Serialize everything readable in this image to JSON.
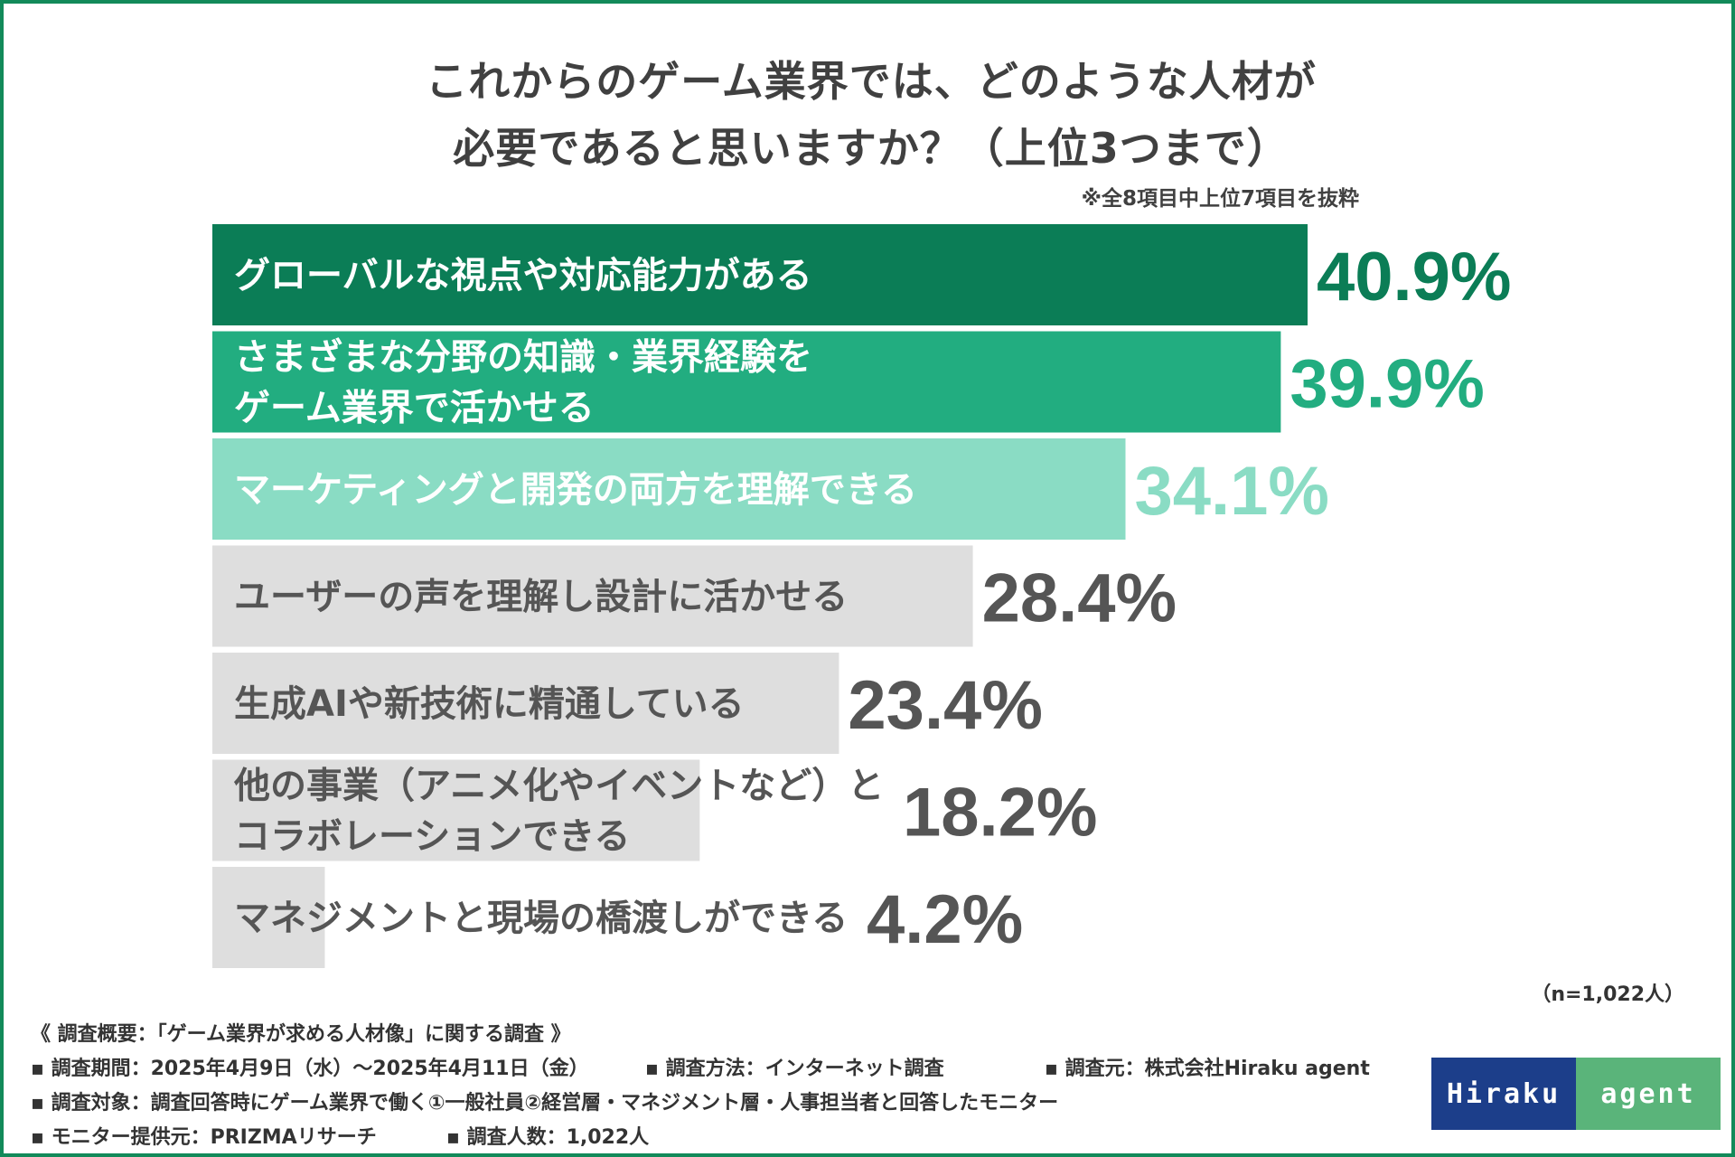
{
  "chart_data": {
    "type": "bar",
    "orientation": "horizontal",
    "title": "これからのゲーム業界では、どのような人材が必要であると思いますか？（上位3つまで）",
    "title_lines": [
      "これからのゲーム業界では、どのような人材が",
      "必要であると思いますか？（上位3つまで）"
    ],
    "note": "※全8項目中上位7項目を抜粋",
    "categories": [
      [
        "グローバルな視点や対応能力がある"
      ],
      [
        "さまざまな分野の知識・業界経験を",
        "ゲーム業界で活かせる"
      ],
      [
        "マーケティングと開発の両方を理解できる"
      ],
      [
        "ユーザーの声を理解し設計に活かせる"
      ],
      [
        "生成AIや新技術に精通している"
      ],
      [
        "他の事業（アニメ化やイベントなど）と",
        "コラボレーションできる"
      ],
      [
        "マネジメントと現場の橋渡しができる"
      ]
    ],
    "values": [
      40.9,
      39.9,
      34.1,
      28.4,
      23.4,
      18.2,
      4.2
    ],
    "value_labels": [
      "40.9%",
      "39.9%",
      "34.1%",
      "28.4%",
      "23.4%",
      "18.2%",
      "4.2%"
    ],
    "xlim": [
      0,
      40.9
    ],
    "unit": "%",
    "colors": {
      "bar": [
        "#0b7d56",
        "#22ad80",
        "#8adcc4",
        "#dedede",
        "#dedede",
        "#dedede",
        "#dedede"
      ],
      "label_text": [
        "#ffffff",
        "#ffffff",
        "#ffffff",
        "#555555",
        "#555555",
        "#555555",
        "#555555"
      ],
      "value_text": [
        "#0b7d56",
        "#22ad80",
        "#8adcc4",
        "#555555",
        "#555555",
        "#555555",
        "#555555"
      ]
    }
  },
  "sample_size": "（n=1,022人）",
  "survey": {
    "header": "《 調査概要：「ゲーム業界が求める人材像」に関する調査 》",
    "period": "▪ 調査期間：2025年4月9日（水）～2025年4月11日（金）",
    "method": "▪ 調査方法：インターネット調査",
    "source": "▪ 調査元：株式会社Hiraku agent",
    "target": "▪ 調査対象：調査回答時にゲーム業界で働く①一般社員②経営層・マネジメント層・人事担当者と回答したモニター",
    "provider": "▪ モニター提供元：PRIZMAリサーチ",
    "respondents": "▪ 調査人数：1,022人"
  },
  "logo": {
    "left_text": "Hiraku",
    "right_text": "agent"
  }
}
